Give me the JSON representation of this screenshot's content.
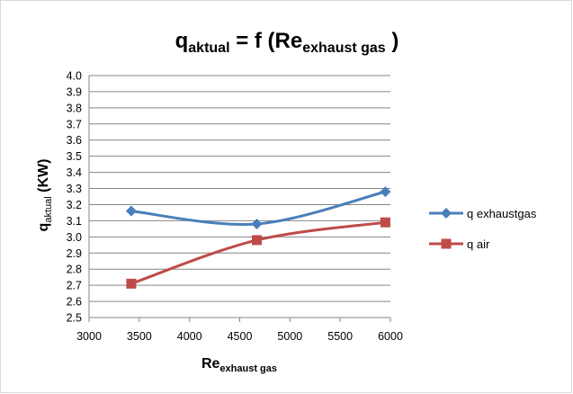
{
  "chart_data": {
    "type": "line",
    "title": {
      "main": "q",
      "main_sub": "aktual",
      "middle": " = f (Re",
      "middle_sub": "exhaust gas",
      "end": " )"
    },
    "xlabel": {
      "main": "Re",
      "sub": "exhaust gas"
    },
    "ylabel": {
      "main": "q",
      "sub": "aktual",
      "rest": " (KW)"
    },
    "xlim": [
      3000,
      6000
    ],
    "ylim": [
      2.5,
      4.0
    ],
    "x_ticks": [
      "3000",
      "3500",
      "4000",
      "4500",
      "5000",
      "5500",
      "6000"
    ],
    "y_ticks": [
      "2.5",
      "2.6",
      "2.7",
      "2.8",
      "2.9",
      "3.0",
      "3.1",
      "3.2",
      "3.3",
      "3.4",
      "3.5",
      "3.6",
      "3.7",
      "3.8",
      "3.9",
      "4.0"
    ],
    "grid": "horizontal",
    "legend_position": "right",
    "series": [
      {
        "name": "q exhaustgas",
        "color": "#4a7ebb",
        "marker": "diamond",
        "x": [
          3420,
          4670,
          5950
        ],
        "y": [
          3.16,
          3.08,
          3.28
        ]
      },
      {
        "name": "q air",
        "color": "#be4b48",
        "marker": "square",
        "x": [
          3420,
          4670,
          5950
        ],
        "y": [
          2.71,
          2.98,
          3.09
        ]
      }
    ]
  }
}
